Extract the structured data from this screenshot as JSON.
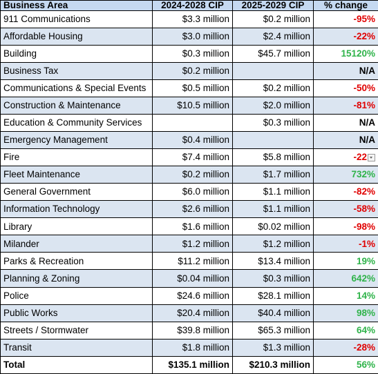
{
  "table": {
    "header": [
      "Business Area",
      "2024-2028 CIP",
      "2025-2029 CIP",
      "% change"
    ],
    "rows": [
      [
        "911 Communications",
        "$3.3 million",
        "$0.2 million",
        "-95%"
      ],
      [
        "Affordable Housing",
        "$3.0 million",
        "$2.4 million",
        "-22%"
      ],
      [
        "Building",
        "$0.3 million",
        "$45.7 million",
        "15120%"
      ],
      [
        "Business Tax",
        "$0.2 million",
        null,
        "N/A"
      ],
      [
        "Communications & Special Events",
        "$0.5 million",
        "$0.2 million",
        "-50%"
      ],
      [
        "Construction & Maintenance",
        "$10.5 million",
        "$2.0 million",
        "-81%"
      ],
      [
        "Education & Community Services",
        null,
        "$0.3 million",
        "N/A"
      ],
      [
        "Emergency Management",
        "$0.4 million",
        null,
        "N/A"
      ],
      [
        "Fire",
        "$7.4 million",
        "$5.8 million",
        "-22"
      ],
      [
        "Fleet Maintenance",
        "$0.2 million",
        "$1.7 million",
        "732%"
      ],
      [
        "General Government",
        "$6.0 million",
        "$1.1 million",
        "-82%"
      ],
      [
        "Information Technology",
        "$2.6 million",
        "$1.1 million",
        "-58%"
      ],
      [
        "Library",
        "$1.6 million",
        "$0.02 million",
        "-98%"
      ],
      [
        "Milander",
        "$1.2 million",
        "$1.2 million",
        "-1%"
      ],
      [
        "Parks & Recreation",
        "$11.2 million",
        "$13.4 million",
        "19%"
      ],
      [
        "Planning & Zoning",
        "$0.04 million",
        "$0.3 million",
        "642%"
      ],
      [
        "Police",
        "$24.6 million",
        "$28.1 million",
        "14%"
      ],
      [
        "Public Works",
        "$20.4 million",
        "$40.4 million",
        "98%"
      ],
      [
        "Streets / Stormwater",
        "$39.8 million",
        "$65.3 million",
        "64%"
      ],
      [
        "Transit",
        "$1.8 million",
        "$1.3 million",
        "-28%"
      ]
    ],
    "total": [
      "Total",
      "$135.1 million",
      "$210.3 million",
      "56%"
    ]
  }
}
